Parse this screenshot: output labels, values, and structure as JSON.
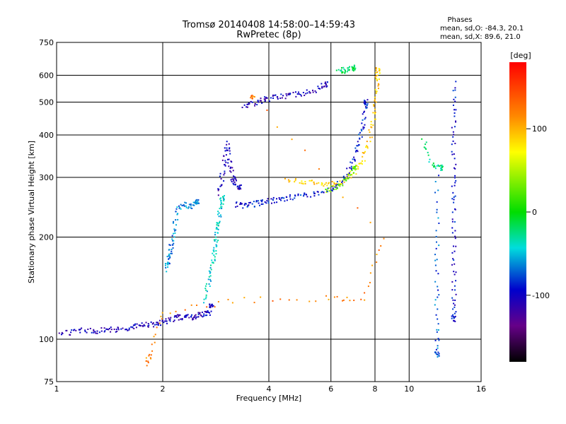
{
  "chart_data": {
    "type": "scatter",
    "title": "Tromsø 20140408 14:58:00–14:59:43",
    "subtitle": "RwPretec (8p)",
    "xlabel": "Frequency [MHz]",
    "ylabel": "Stationary phase Virtual Height [km]",
    "x_scale": "log",
    "y_scale": "log",
    "xlim": [
      1,
      16
    ],
    "ylim": [
      75,
      750
    ],
    "x_ticks": [
      "1",
      "2",
      "4",
      "6",
      "8",
      "10",
      "16"
    ],
    "y_ticks": [
      "75",
      "100",
      "200",
      "300",
      "400",
      "500",
      "600",
      "750"
    ],
    "grid": true,
    "phase_info": {
      "heading": "Phases",
      "line_O": "mean, sd,O: -84.3, 20.1",
      "line_X": "mean, sd,X:  89.6, 21.0"
    },
    "colorbar": {
      "label": "[deg]",
      "range": [
        -180,
        180
      ],
      "ticks": [
        "100",
        "0",
        "-100"
      ]
    },
    "traces": [
      {
        "points": [
          [
            1.0,
            104
          ],
          [
            1.1,
            105
          ],
          [
            1.2,
            106
          ],
          [
            1.3,
            106
          ],
          [
            1.4,
            106
          ],
          [
            1.5,
            107
          ],
          [
            1.6,
            108
          ],
          [
            1.7,
            109
          ],
          [
            1.8,
            110
          ],
          [
            1.9,
            111
          ],
          [
            2.0,
            112
          ],
          [
            2.1,
            114
          ],
          [
            2.2,
            116
          ],
          [
            2.3,
            116
          ],
          [
            2.4,
            116
          ],
          [
            2.5,
            117
          ],
          [
            2.6,
            118
          ],
          [
            2.7,
            120
          ],
          [
            2.75,
            125
          ]
        ],
        "phase": -110
      },
      {
        "points": [
          [
            2.6,
            130
          ],
          [
            2.7,
            145
          ],
          [
            2.75,
            160
          ],
          [
            2.8,
            175
          ],
          [
            2.82,
            190
          ],
          [
            2.85,
            205
          ],
          [
            2.88,
            220
          ],
          [
            2.9,
            240
          ],
          [
            2.95,
            260
          ]
        ],
        "phase": -50
      },
      {
        "points": [
          [
            2.9,
            270
          ],
          [
            2.95,
            300
          ],
          [
            3.0,
            340
          ],
          [
            3.05,
            380
          ],
          [
            3.1,
            330
          ],
          [
            3.15,
            300
          ],
          [
            3.2,
            290
          ],
          [
            3.3,
            280
          ]
        ],
        "phase": -110
      },
      {
        "points": [
          [
            3.2,
            250
          ],
          [
            3.4,
            248
          ],
          [
            3.6,
            250
          ],
          [
            3.8,
            252
          ],
          [
            4.0,
            255
          ],
          [
            4.3,
            258
          ],
          [
            4.6,
            262
          ],
          [
            5.0,
            265
          ],
          [
            5.5,
            270
          ],
          [
            6.0,
            275
          ],
          [
            6.3,
            285
          ],
          [
            6.6,
            300
          ],
          [
            6.9,
            330
          ],
          [
            7.1,
            360
          ],
          [
            7.3,
            400
          ],
          [
            7.45,
            450
          ],
          [
            7.55,
            500
          ]
        ],
        "phase": -95
      },
      {
        "points": [
          [
            4.5,
            295
          ],
          [
            5.0,
            292
          ],
          [
            5.5,
            288
          ],
          [
            6.0,
            285
          ],
          [
            6.5,
            292
          ],
          [
            7.0,
            310
          ],
          [
            7.4,
            340
          ],
          [
            7.7,
            380
          ],
          [
            7.9,
            440
          ],
          [
            8.0,
            500
          ],
          [
            8.1,
            560
          ],
          [
            8.15,
            620
          ]
        ],
        "phase": 90
      },
      {
        "points": [
          [
            5.8,
            272
          ],
          [
            6.2,
            280
          ],
          [
            6.6,
            295
          ],
          [
            7.0,
            320
          ]
        ],
        "phase": 30
      },
      {
        "points": [
          [
            3.4,
            490
          ],
          [
            3.6,
            495
          ],
          [
            3.8,
            505
          ],
          [
            4.0,
            512
          ],
          [
            4.3,
            520
          ],
          [
            4.6,
            525
          ],
          [
            5.0,
            530
          ],
          [
            5.4,
            540
          ],
          [
            5.8,
            565
          ]
        ],
        "phase": -110
      },
      {
        "points": [
          [
            2.05,
            160
          ],
          [
            2.08,
            170
          ],
          [
            2.1,
            180
          ],
          [
            2.12,
            190
          ],
          [
            2.15,
            210
          ],
          [
            2.2,
            240
          ],
          [
            2.3,
            250
          ],
          [
            2.4,
            245
          ],
          [
            2.5,
            255
          ]
        ],
        "phase": -70
      },
      {
        "points": [
          [
            6.3,
            630
          ],
          [
            6.5,
            620
          ],
          [
            6.8,
            625
          ],
          [
            7.0,
            630
          ]
        ],
        "phase": -20
      },
      {
        "points": [
          [
            12.0,
            300
          ],
          [
            12.0,
            200
          ],
          [
            12.0,
            150
          ],
          [
            12.0,
            110
          ],
          [
            12.0,
            90
          ]
        ],
        "phase": -80
      },
      {
        "points": [
          [
            13.4,
            570
          ],
          [
            13.4,
            460
          ],
          [
            13.4,
            380
          ],
          [
            13.4,
            300
          ],
          [
            13.4,
            250
          ],
          [
            13.4,
            200
          ],
          [
            13.4,
            160
          ],
          [
            13.4,
            130
          ],
          [
            13.4,
            115
          ]
        ],
        "phase": -100
      },
      {
        "points": [
          [
            11.0,
            395
          ],
          [
            11.6,
            330
          ],
          [
            12.3,
            320
          ]
        ],
        "phase": -30
      },
      {
        "points": [
          [
            1.8,
            85
          ],
          [
            1.85,
            90
          ],
          [
            2.0,
            120
          ],
          [
            3.2,
            130
          ],
          [
            5.8,
            132
          ],
          [
            7.4,
            132
          ],
          [
            8.5,
            200
          ],
          [
            3.6,
            520
          ]
        ],
        "phase": 120
      }
    ]
  }
}
